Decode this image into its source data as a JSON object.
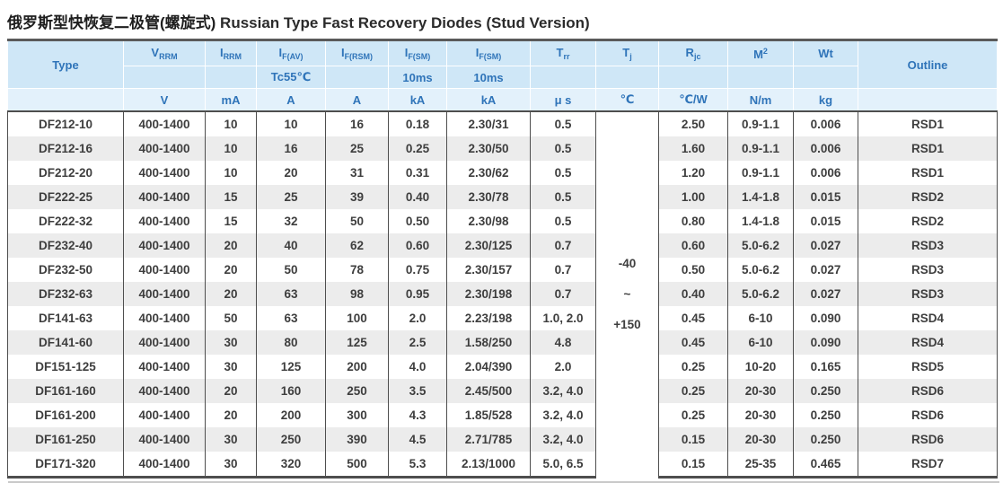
{
  "page": {
    "title_zh": "俄罗斯型快恢复二极管(螺旋式)",
    "title_en": " Russian Type Fast Recovery Diodes (Stud Version)"
  },
  "colors": {
    "header_bg": "#cfe7f7",
    "unit_row_bg": "#e3f1fb",
    "header_text": "#2f74b9",
    "stripe_bg": "#ececec",
    "body_text": "#3e3e3e",
    "rule_dark": "#4e4e4e"
  },
  "table": {
    "header": {
      "type_label": "Type",
      "outline_label": "Outline",
      "symbols": [
        {
          "base": "V",
          "sub": "RRM"
        },
        {
          "base": "I",
          "sub": "RRM"
        },
        {
          "base": "I",
          "sub": "F(AV)"
        },
        {
          "base": "I",
          "sub": "F(RSM)"
        },
        {
          "base": "I",
          "sub": "F(SM)"
        },
        {
          "base": "I",
          "sub": "F(SM)"
        },
        {
          "base": "T",
          "sub": "rr"
        },
        {
          "base": "T",
          "sub": "j"
        },
        {
          "base": "R",
          "sub": "jc"
        },
        {
          "base": "M",
          "sup": "2"
        },
        {
          "base": "Wt"
        }
      ],
      "conditions": [
        "",
        "",
        "Tc55℃",
        "",
        "10ms",
        "10ms",
        "",
        "",
        "",
        "",
        ""
      ],
      "units": [
        "",
        "V",
        "mA",
        "A",
        "A",
        "kA",
        "kA",
        "μ s",
        "℃",
        "℃/W",
        "N/m",
        "kg",
        ""
      ]
    },
    "tj_range": [
      "-40",
      "~",
      "+150"
    ],
    "rows": [
      [
        "DF212-10",
        "400-1400",
        "10",
        "10",
        "16",
        "0.18",
        "2.30/31",
        "0.5",
        "2.50",
        "0.9-1.1",
        "0.006",
        "RSD1"
      ],
      [
        "DF212-16",
        "400-1400",
        "10",
        "16",
        "25",
        "0.25",
        "2.30/50",
        "0.5",
        "1.60",
        "0.9-1.1",
        "0.006",
        "RSD1"
      ],
      [
        "DF212-20",
        "400-1400",
        "10",
        "20",
        "31",
        "0.31",
        "2.30/62",
        "0.5",
        "1.20",
        "0.9-1.1",
        "0.006",
        "RSD1"
      ],
      [
        "DF222-25",
        "400-1400",
        "15",
        "25",
        "39",
        "0.40",
        "2.30/78",
        "0.5",
        "1.00",
        "1.4-1.8",
        "0.015",
        "RSD2"
      ],
      [
        "DF222-32",
        "400-1400",
        "15",
        "32",
        "50",
        "0.50",
        "2.30/98",
        "0.5",
        "0.80",
        "1.4-1.8",
        "0.015",
        "RSD2"
      ],
      [
        "DF232-40",
        "400-1400",
        "20",
        "40",
        "62",
        "0.60",
        "2.30/125",
        "0.7",
        "0.60",
        "5.0-6.2",
        "0.027",
        "RSD3"
      ],
      [
        "DF232-50",
        "400-1400",
        "20",
        "50",
        "78",
        "0.75",
        "2.30/157",
        "0.7",
        "0.50",
        "5.0-6.2",
        "0.027",
        "RSD3"
      ],
      [
        "DF232-63",
        "400-1400",
        "20",
        "63",
        "98",
        "0.95",
        "2.30/198",
        "0.7",
        "0.40",
        "5.0-6.2",
        "0.027",
        "RSD3"
      ],
      [
        "DF141-63",
        "400-1400",
        "50",
        "63",
        "100",
        "2.0",
        "2.23/198",
        "1.0, 2.0",
        "0.45",
        "6-10",
        "0.090",
        "RSD4"
      ],
      [
        "DF141-60",
        "400-1400",
        "30",
        "80",
        "125",
        "2.5",
        "1.58/250",
        "4.8",
        "0.45",
        "6-10",
        "0.090",
        "RSD4"
      ],
      [
        "DF151-125",
        "400-1400",
        "30",
        "125",
        "200",
        "4.0",
        "2.04/390",
        "2.0",
        "0.25",
        "10-20",
        "0.165",
        "RSD5"
      ],
      [
        "DF161-160",
        "400-1400",
        "20",
        "160",
        "250",
        "3.5",
        "2.45/500",
        "3.2, 4.0",
        "0.25",
        "20-30",
        "0.250",
        "RSD6"
      ],
      [
        "DF161-200",
        "400-1400",
        "20",
        "200",
        "300",
        "4.3",
        "1.85/528",
        "3.2, 4.0",
        "0.25",
        "20-30",
        "0.250",
        "RSD6"
      ],
      [
        "DF161-250",
        "400-1400",
        "30",
        "250",
        "390",
        "4.5",
        "2.71/785",
        "3.2, 4.0",
        "0.15",
        "20-30",
        "0.250",
        "RSD6"
      ],
      [
        "DF171-320",
        "400-1400",
        "30",
        "320",
        "500",
        "5.3",
        "2.13/1000",
        "5.0, 6.5",
        "0.15",
        "25-35",
        "0.465",
        "RSD7"
      ]
    ]
  }
}
